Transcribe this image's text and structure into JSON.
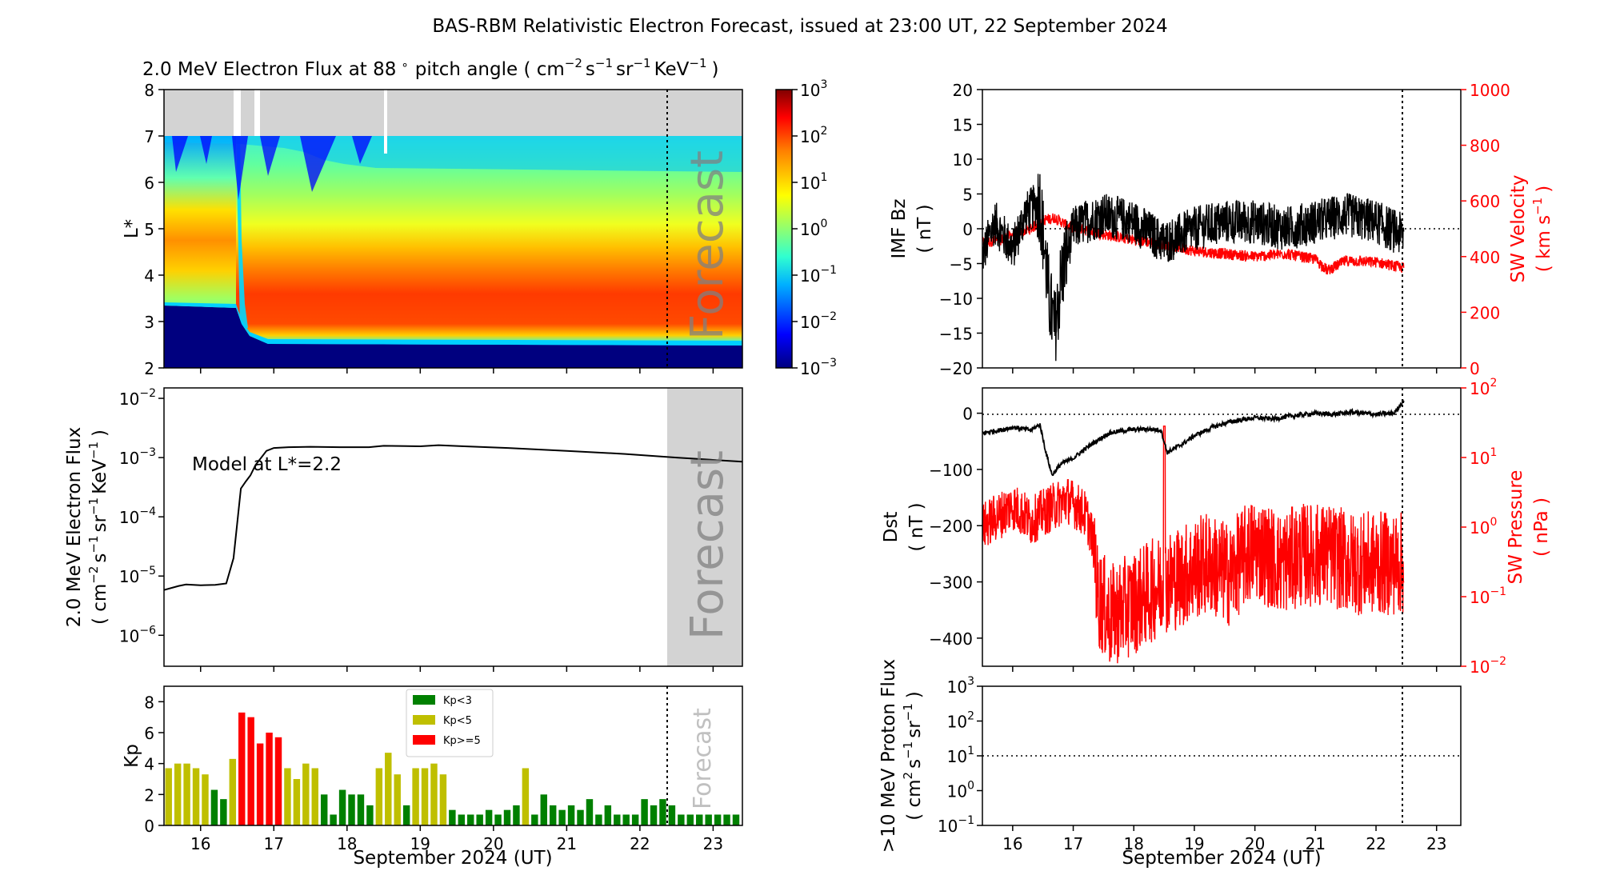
{
  "title": "BAS-RBM Relativistic Electron Forecast, issued at 23:00 UT, 22 September 2024",
  "flux_panel": {
    "title_main": "2.0 MeV Electron Flux at 88",
    "title_deg": "∘",
    "title_units": "pitch angle ( cm",
    "title_tail": "KeV",
    "ylabel": "L*",
    "yticks": [
      "2",
      "3",
      "4",
      "5",
      "6",
      "7",
      "8"
    ],
    "forecast_label": "Forecast",
    "colorbar_ticks": [
      "10",
      "10",
      "10",
      "10",
      "10",
      "10",
      "10"
    ],
    "colorbar_exps": [
      "3",
      "2",
      "1",
      "0",
      "−1",
      "−2",
      "−3"
    ]
  },
  "model_panel": {
    "ylabel_line1": "2.0 MeV Electron Flux",
    "ylabel_line2": "( cm",
    "annotation": "Model at L*=2.2",
    "forecast_label": "Forecast",
    "yticks": [
      "10",
      "10",
      "10",
      "10",
      "10"
    ],
    "yexps": [
      "−2",
      "−3",
      "−4",
      "−5",
      "−6"
    ]
  },
  "kp_panel": {
    "ylabel": "Kp",
    "yticks": [
      "0",
      "2",
      "4",
      "6",
      "8"
    ],
    "forecast_label": "Forecast",
    "legend": [
      {
        "label": "Kp<3",
        "color": "#008000"
      },
      {
        "label": "Kp<5",
        "color": "#bfbf00"
      },
      {
        "label": "Kp>=5",
        "color": "#ff0000"
      }
    ]
  },
  "imf_panel": {
    "ylabel_line1": "IMF Bz",
    "ylabel_line2": "( nT )",
    "yticks": [
      "20",
      "15",
      "10",
      "5",
      "0",
      "−5",
      "−10",
      "−15",
      "−20"
    ],
    "ylabel_right_line1": "SW Velocity",
    "ylabel_right_line2": "( km s",
    "yticks_right": [
      "1000",
      "800",
      "600",
      "400",
      "200",
      "0"
    ]
  },
  "dst_panel": {
    "ylabel_line1": "Dst",
    "ylabel_line2": "( nT )",
    "yticks": [
      "0",
      "−100",
      "−200",
      "−300",
      "−400"
    ],
    "ylabel_right_line1": "SW Pressure",
    "ylabel_right_line2": "( nPa )",
    "yticks_right": [
      "10",
      "10",
      "10",
      "10",
      "10"
    ],
    "yexps_right": [
      "2",
      "1",
      "0",
      "−1",
      "−2"
    ]
  },
  "proton_panel": {
    "ylabel_line1": ">10 MeV Proton Flux",
    "ylabel_line2": "( cm",
    "yticks": [
      "10",
      "10",
      "10",
      "10",
      "10"
    ],
    "yexps": [
      "3",
      "2",
      "1",
      "0",
      "−1"
    ]
  },
  "xaxis": {
    "ticks": [
      "16",
      "17",
      "18",
      "19",
      "20",
      "21",
      "22",
      "23"
    ],
    "label": "September 2024 (UT)"
  },
  "colors": {
    "red": "#ff0000",
    "black": "#000000",
    "forecast_shade": "#d3d3d3"
  },
  "chart_data": [
    {
      "type": "heatmap",
      "title": "2.0 MeV Electron Flux at 88∘ pitch angle ( cm⁻² s⁻¹ sr⁻¹ KeV⁻¹ )",
      "xlim_days": [
        15.5,
        23.4
      ],
      "ylim": [
        2,
        8
      ],
      "ylabel": "L*",
      "colorbar_range_log10": [
        -3,
        3
      ],
      "forecast_start_day": 22.458
    },
    {
      "type": "line",
      "annotation": "Model at L*=2.2",
      "yscale": "log",
      "ylim": [
        3e-07,
        0.015
      ],
      "x_days": [
        15.5,
        15.7,
        15.8,
        16.0,
        16.2,
        16.35,
        16.45,
        16.55,
        16.62,
        16.68,
        16.75,
        16.9,
        17.0,
        17.2,
        17.5,
        17.9,
        18.3,
        18.5,
        19.0,
        19.25,
        19.6,
        20.2,
        21.0,
        21.8,
        22.5,
        23.4
      ],
      "y": [
        5.8e-06,
        6.8e-06,
        7.2e-06,
        7e-06,
        7.1e-06,
        7.5e-06,
        2e-05,
        0.0003,
        0.0004,
        0.0005,
        0.00075,
        0.0013,
        0.00145,
        0.0015,
        0.00152,
        0.0015,
        0.0015,
        0.00158,
        0.00155,
        0.00162,
        0.00155,
        0.00145,
        0.0013,
        0.00115,
        0.001,
        0.00085
      ]
    },
    {
      "type": "bar",
      "ylabel": "Kp",
      "ylim": [
        0,
        9
      ],
      "bar_width_days": 0.125,
      "start_day": 15.5,
      "values": [
        3.7,
        4.0,
        4.0,
        3.7,
        3.3,
        2.3,
        1.7,
        4.3,
        7.3,
        7.0,
        5.3,
        6.0,
        5.7,
        3.7,
        3.0,
        4.0,
        3.7,
        2.0,
        0.7,
        2.3,
        2.0,
        2.0,
        1.3,
        3.7,
        4.7,
        3.3,
        1.3,
        3.7,
        3.7,
        4.0,
        3.3,
        1.0,
        0.7,
        0.7,
        0.7,
        1.0,
        0.7,
        1.0,
        1.3,
        3.7,
        0.7,
        2.0,
        1.3,
        1.0,
        1.3,
        1.0,
        1.7,
        0.7,
        1.3,
        0.7,
        0.7,
        0.7,
        1.7,
        1.3,
        1.7,
        1.3,
        0.7,
        0.7,
        0.7,
        0.7,
        0.7,
        0.7,
        0.7
      ],
      "forecast_start_day": 22.458
    },
    {
      "type": "line",
      "series": [
        {
          "name": "IMF Bz",
          "ylim": [
            -20,
            20
          ],
          "units": "nT",
          "x_days": [
            15.5,
            15.7,
            16.0,
            16.2,
            16.45,
            16.6,
            16.7,
            16.8,
            17.0,
            17.2,
            17.5,
            18.0,
            18.5,
            19.0,
            19.5,
            20.0,
            20.5,
            21.0,
            21.5,
            22.0,
            22.45
          ],
          "y": [
            -4,
            1,
            -3,
            2,
            4,
            -10,
            -15,
            -7,
            0,
            1,
            2,
            1,
            -2,
            0,
            1,
            1,
            0,
            1,
            2,
            1,
            -1
          ]
        },
        {
          "name": "SW Velocity",
          "ylim": [
            0,
            1000
          ],
          "units": "km s⁻¹",
          "x_days": [
            15.5,
            15.8,
            16.0,
            16.3,
            16.5,
            16.7,
            16.9,
            17.2,
            17.5,
            18.0,
            18.5,
            19.0,
            19.5,
            20.0,
            20.5,
            21.0,
            21.2,
            21.5,
            22.0,
            22.45
          ],
          "y": [
            450,
            460,
            480,
            500,
            530,
            540,
            510,
            495,
            480,
            460,
            445,
            420,
            410,
            400,
            410,
            390,
            350,
            385,
            380,
            360
          ]
        }
      ],
      "forecast_start_day": 22.458
    },
    {
      "type": "line",
      "series": [
        {
          "name": "Dst",
          "ylim": [
            -450,
            45
          ],
          "units": "nT",
          "x_days": [
            15.5,
            15.8,
            16.0,
            16.3,
            16.45,
            16.55,
            16.65,
            16.8,
            17.0,
            17.3,
            17.6,
            17.9,
            18.2,
            18.45,
            18.55,
            18.8,
            19.0,
            19.3,
            19.6,
            20.0,
            20.3,
            20.6,
            21.0,
            21.3,
            21.6,
            22.0,
            22.3,
            22.45
          ],
          "y": [
            -35,
            -30,
            -25,
            -30,
            -20,
            -70,
            -110,
            -90,
            -80,
            -55,
            -35,
            -30,
            -28,
            -30,
            -70,
            -55,
            -40,
            -25,
            -15,
            -8,
            -10,
            -5,
            0,
            -2,
            2,
            -2,
            0,
            22
          ]
        },
        {
          "name": "SW Pressure",
          "yscale": "log",
          "ylim": [
            0.01,
            100
          ],
          "units": "nPa",
          "x_days": [
            15.5,
            15.8,
            16.0,
            16.3,
            16.6,
            16.9,
            17.2,
            17.4,
            17.6,
            18.0,
            18.5,
            18.8,
            19.2,
            19.6,
            20.0,
            20.4,
            20.8,
            21.2,
            21.6,
            22.0,
            22.45
          ],
          "y": [
            1.0,
            1.5,
            2.0,
            1.2,
            1.8,
            2.5,
            1.5,
            0.1,
            0.05,
            0.08,
            0.15,
            0.2,
            0.3,
            0.2,
            0.5,
            0.3,
            0.4,
            0.4,
            0.3,
            0.3,
            0.3
          ]
        }
      ],
      "forecast_start_day": 22.458
    },
    {
      "type": "line",
      "ylabel": ">10 MeV Proton Flux ( cm² s⁻¹ sr⁻¹ )",
      "yscale": "log",
      "ylim": [
        0.1,
        1000
      ],
      "reference_level": 10,
      "series": [],
      "forecast_start_day": 22.458
    }
  ]
}
